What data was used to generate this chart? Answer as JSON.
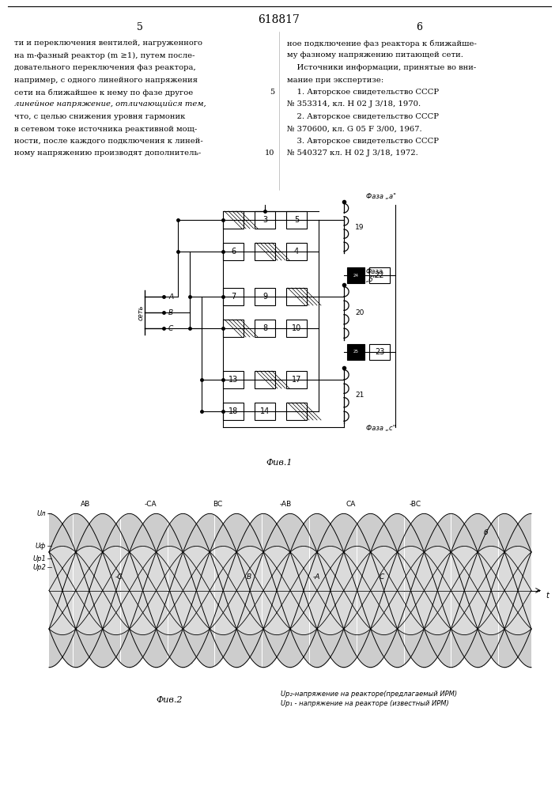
{
  "title_number": "618817",
  "page_left": "5",
  "page_right": "6",
  "fig1_label": "Фив.1",
  "fig2_label": "Фив.2",
  "background_color": "#ffffff",
  "text_left": "ти и переключения вентилей, нагруженного\nна m-фазный реактор (m ≥1), путем после-\nдовательного переключения фаз реактора,\nнапример, с одного линейного напряжения\nсети на ближайшее к нему по фазе другое\nлинейное напряжение, отличающийся тем,\nчто, с целью снижения уровня гармоник\nв сетевом токе источника реактивной мощ-\nности, после каждого подключения к линей-\nному напряжению производят дополнитель-",
  "text_right": "ное подключение фаз реактора к ближайше-\nму фазному напряжению питающей сети.\n    Источники информации, принятые во вни-\nмание при экспертизе:\n    1. Авторское свидетельство СССР\n№ 353314, кл. Н 02 J 3/18, 1970.\n    2. Авторское свидетельство СССР\n№ 370600, кл. G 05 F 3/00, 1967.\n    3. Авторское свидетельство СССР\n№ 540327 кл. Н 02 J 3/18, 1972.",
  "diagram_top_labels": [
    "AB",
    "-CA",
    "BC",
    "-AB",
    "CA",
    "-BC"
  ],
  "diagram_mid_labels": [
    "-C",
    "B",
    "-A",
    "C"
  ],
  "legend1": "Up₂-напряжение на реакторе(предлагаемый ИРМ)",
  "legend2": "Up₁ - напряжение на реакторе (известный ИРМ)"
}
